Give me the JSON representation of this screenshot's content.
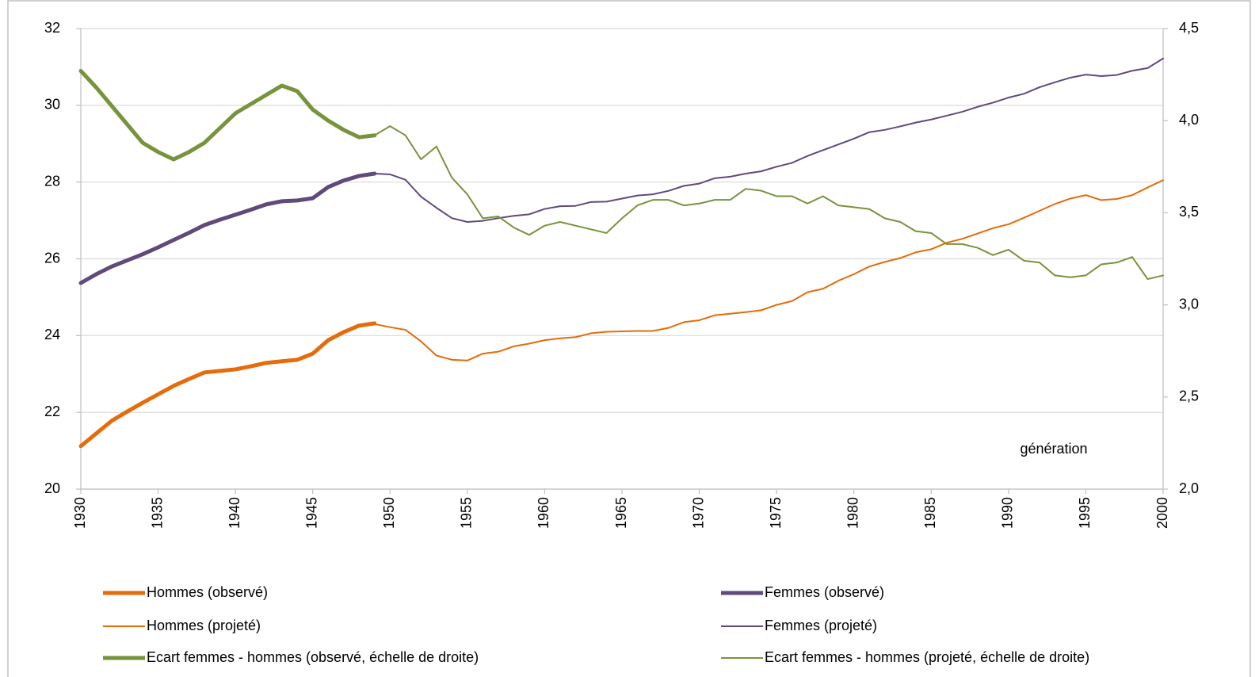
{
  "chart_data": {
    "type": "line",
    "annotations": [
      "génération"
    ],
    "x": [
      1930,
      1931,
      1932,
      1933,
      1934,
      1935,
      1936,
      1937,
      1938,
      1939,
      1940,
      1941,
      1942,
      1943,
      1944,
      1945,
      1946,
      1947,
      1948,
      1949,
      1950,
      1951,
      1952,
      1953,
      1954,
      1955,
      1956,
      1957,
      1958,
      1959,
      1960,
      1961,
      1962,
      1963,
      1964,
      1965,
      1966,
      1967,
      1968,
      1969,
      1970,
      1971,
      1972,
      1973,
      1974,
      1975,
      1976,
      1977,
      1978,
      1979,
      1980,
      1981,
      1982,
      1983,
      1984,
      1985,
      1986,
      1987,
      1988,
      1989,
      1990,
      1991,
      1992,
      1993,
      1994,
      1995,
      1996,
      1997,
      1998,
      1999,
      2000
    ],
    "xlim": [
      1930,
      2000
    ],
    "xticks": [
      1930,
      1935,
      1940,
      1945,
      1950,
      1955,
      1960,
      1965,
      1970,
      1975,
      1980,
      1985,
      1990,
      1995,
      2000
    ],
    "ylim": [
      20,
      32
    ],
    "yticks": [
      20,
      22,
      24,
      26,
      28,
      30,
      32
    ],
    "y2lim": [
      2.0,
      4.5
    ],
    "y2ticks": [
      {
        "value": 2.0,
        "label": "2,0"
      },
      {
        "value": 2.5,
        "label": "2,5"
      },
      {
        "value": 3.0,
        "label": "3,0"
      },
      {
        "value": 3.5,
        "label": "3,5"
      },
      {
        "value": 4.0,
        "label": "4,0"
      },
      {
        "value": 4.5,
        "label": "4,5"
      }
    ],
    "grid": true,
    "legend": "bottom",
    "series": [
      {
        "name": "Hommes (observé)",
        "color": "#e46c0a",
        "linewidth": 5,
        "values": [
          21.12,
          21.45,
          21.78,
          22.02,
          22.25,
          22.47,
          22.69,
          22.87,
          23.04,
          23.08,
          23.12,
          23.2,
          23.29,
          23.33,
          23.37,
          23.53,
          23.88,
          24.09,
          24.26,
          24.32,
          null,
          null,
          null,
          null,
          null,
          null,
          null,
          null,
          null,
          null,
          null,
          null,
          null,
          null,
          null,
          null,
          null,
          null,
          null,
          null,
          null,
          null,
          null,
          null,
          null,
          null,
          null,
          null,
          null,
          null,
          null,
          null,
          null,
          null,
          null,
          null,
          null,
          null,
          null,
          null,
          null,
          null,
          null,
          null,
          null,
          null,
          null,
          null,
          null,
          null,
          null
        ]
      },
      {
        "name": "Femmes (observé)",
        "color": "#604a7b",
        "linewidth": 5,
        "values": [
          25.37,
          25.6,
          25.8,
          25.96,
          26.12,
          26.3,
          26.49,
          26.68,
          26.88,
          27.02,
          27.15,
          27.28,
          27.42,
          27.5,
          27.52,
          27.58,
          27.87,
          28.04,
          28.16,
          28.22,
          null,
          null,
          null,
          null,
          null,
          null,
          null,
          null,
          null,
          null,
          null,
          null,
          null,
          null,
          null,
          null,
          null,
          null,
          null,
          null,
          null,
          null,
          null,
          null,
          null,
          null,
          null,
          null,
          null,
          null,
          null,
          null,
          null,
          null,
          null,
          null,
          null,
          null,
          null,
          null,
          null,
          null,
          null,
          null,
          null,
          null,
          null,
          null,
          null,
          null,
          null
        ]
      },
      {
        "name": "Hommes (projeté)",
        "color": "#e46c0a",
        "linewidth": 2,
        "values": [
          null,
          null,
          null,
          null,
          null,
          null,
          null,
          null,
          null,
          null,
          null,
          null,
          null,
          null,
          null,
          null,
          null,
          null,
          null,
          24.3,
          24.22,
          24.15,
          23.85,
          23.48,
          23.37,
          23.35,
          23.53,
          23.58,
          23.72,
          23.79,
          23.88,
          23.93,
          23.96,
          24.06,
          24.1,
          24.11,
          24.12,
          24.12,
          24.2,
          24.35,
          24.4,
          24.53,
          24.57,
          24.61,
          24.66,
          24.8,
          24.9,
          25.13,
          25.22,
          25.43,
          25.6,
          25.8,
          25.92,
          26.02,
          26.17,
          26.25,
          26.42,
          26.52,
          26.66,
          26.8,
          26.9,
          27.07,
          27.25,
          27.43,
          27.57,
          27.66,
          27.53,
          27.56,
          27.66,
          27.86,
          28.05
        ]
      },
      {
        "name": "Femmes (projeté)",
        "color": "#604a7b",
        "linewidth": 2,
        "values": [
          null,
          null,
          null,
          null,
          null,
          null,
          null,
          null,
          null,
          null,
          null,
          null,
          null,
          null,
          null,
          null,
          null,
          null,
          null,
          28.22,
          28.2,
          28.06,
          27.62,
          27.33,
          27.06,
          26.96,
          26.99,
          27.06,
          27.12,
          27.16,
          27.3,
          27.37,
          27.38,
          27.48,
          27.49,
          27.57,
          27.65,
          27.68,
          27.77,
          27.9,
          27.96,
          28.1,
          28.14,
          28.22,
          28.28,
          28.4,
          28.5,
          28.68,
          28.83,
          28.98,
          29.13,
          29.3,
          29.36,
          29.45,
          29.55,
          29.63,
          29.73,
          29.83,
          29.96,
          30.07,
          30.2,
          30.3,
          30.47,
          30.6,
          30.72,
          30.8,
          30.76,
          30.79,
          30.9,
          30.97,
          31.22
        ]
      },
      {
        "name": "Ecart femmes - hommes (observé, échelle de droite)",
        "color": "#77933c",
        "linewidth": 5,
        "axis": "y2",
        "values": [
          4.27,
          4.18,
          4.08,
          3.98,
          3.88,
          3.83,
          3.79,
          3.83,
          3.88,
          3.96,
          4.04,
          4.09,
          4.14,
          4.19,
          4.16,
          4.06,
          4.0,
          3.95,
          3.91,
          3.92,
          null,
          null,
          null,
          null,
          null,
          null,
          null,
          null,
          null,
          null,
          null,
          null,
          null,
          null,
          null,
          null,
          null,
          null,
          null,
          null,
          null,
          null,
          null,
          null,
          null,
          null,
          null,
          null,
          null,
          null,
          null,
          null,
          null,
          null,
          null,
          null,
          null,
          null,
          null,
          null,
          null,
          null,
          null,
          null,
          null,
          null,
          null,
          null,
          null,
          null,
          null
        ]
      },
      {
        "name": "Ecart femmes - hommes (projeté, échelle de droite)",
        "color": "#77933c",
        "linewidth": 2,
        "axis": "y2",
        "values": [
          null,
          null,
          null,
          null,
          null,
          null,
          null,
          null,
          null,
          null,
          null,
          null,
          null,
          null,
          null,
          null,
          null,
          null,
          null,
          3.92,
          3.97,
          3.92,
          3.79,
          3.86,
          3.69,
          3.6,
          3.47,
          3.48,
          3.42,
          3.38,
          3.43,
          3.45,
          3.43,
          3.41,
          3.39,
          3.47,
          3.54,
          3.57,
          3.57,
          3.54,
          3.55,
          3.57,
          3.57,
          3.63,
          3.62,
          3.59,
          3.59,
          3.55,
          3.59,
          3.54,
          3.53,
          3.52,
          3.47,
          3.45,
          3.4,
          3.39,
          3.33,
          3.33,
          3.31,
          3.27,
          3.3,
          3.24,
          3.23,
          3.16,
          3.15,
          3.16,
          3.22,
          3.23,
          3.26,
          3.14,
          3.16
        ]
      }
    ]
  }
}
